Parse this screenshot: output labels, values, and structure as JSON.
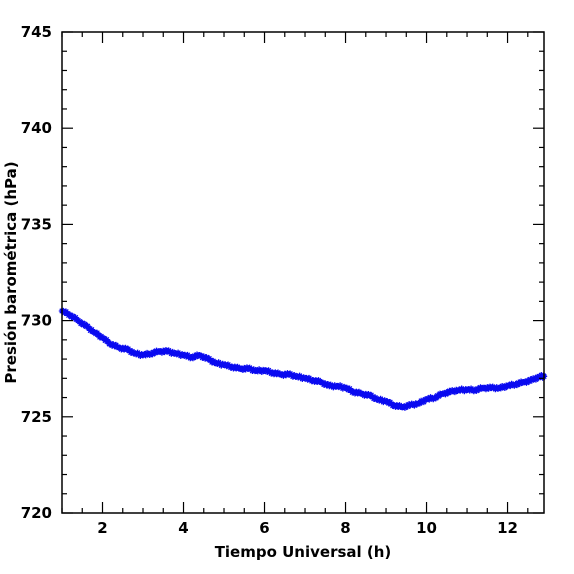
{
  "chart_data": {
    "type": "scatter",
    "title": "",
    "xlabel": "Tiempo Universal (h)",
    "ylabel": "Presión barométrica (hPa)",
    "xlim": [
      1.0,
      12.9
    ],
    "ylim": [
      720,
      745
    ],
    "xticks": [
      2,
      4,
      6,
      8,
      10,
      12
    ],
    "yticks": [
      720,
      725,
      730,
      735,
      740,
      745
    ],
    "grid": false,
    "legend": "none",
    "marker_color": "#0a0af0",
    "marker": "star",
    "series": [
      {
        "x": [
          1.0,
          1.2,
          1.4,
          1.6,
          1.8,
          2.0,
          2.2,
          2.4,
          2.6,
          2.8,
          3.0,
          3.2,
          3.4,
          3.6,
          3.8,
          4.0,
          4.2,
          4.4,
          4.6,
          4.8,
          5.0,
          5.2,
          5.4,
          5.6,
          5.8,
          6.0,
          6.2,
          6.4,
          6.6,
          6.8,
          7.0,
          7.2,
          7.4,
          7.6,
          7.8,
          8.0,
          8.2,
          8.4,
          8.6,
          8.8,
          9.0,
          9.2,
          9.4,
          9.6,
          9.8,
          10.0,
          10.2,
          10.4,
          10.6,
          10.8,
          11.0,
          11.2,
          11.4,
          11.6,
          11.8,
          12.0,
          12.2,
          12.4,
          12.6,
          12.8,
          12.9
        ],
        "y": [
          730.5,
          730.3,
          730.0,
          729.7,
          729.4,
          729.1,
          728.8,
          728.6,
          728.5,
          728.3,
          728.2,
          728.3,
          728.4,
          728.4,
          728.3,
          728.2,
          728.1,
          728.2,
          728.0,
          727.8,
          727.7,
          727.6,
          727.5,
          727.5,
          727.4,
          727.4,
          727.3,
          727.2,
          727.2,
          727.1,
          727.0,
          726.9,
          726.8,
          726.6,
          726.6,
          726.5,
          726.3,
          726.2,
          726.1,
          725.9,
          725.8,
          725.6,
          725.5,
          725.6,
          725.7,
          725.9,
          726.0,
          726.2,
          726.3,
          726.4,
          726.4,
          726.4,
          726.5,
          726.5,
          726.5,
          726.6,
          726.7,
          726.8,
          726.9,
          727.1,
          727.1
        ]
      }
    ]
  }
}
